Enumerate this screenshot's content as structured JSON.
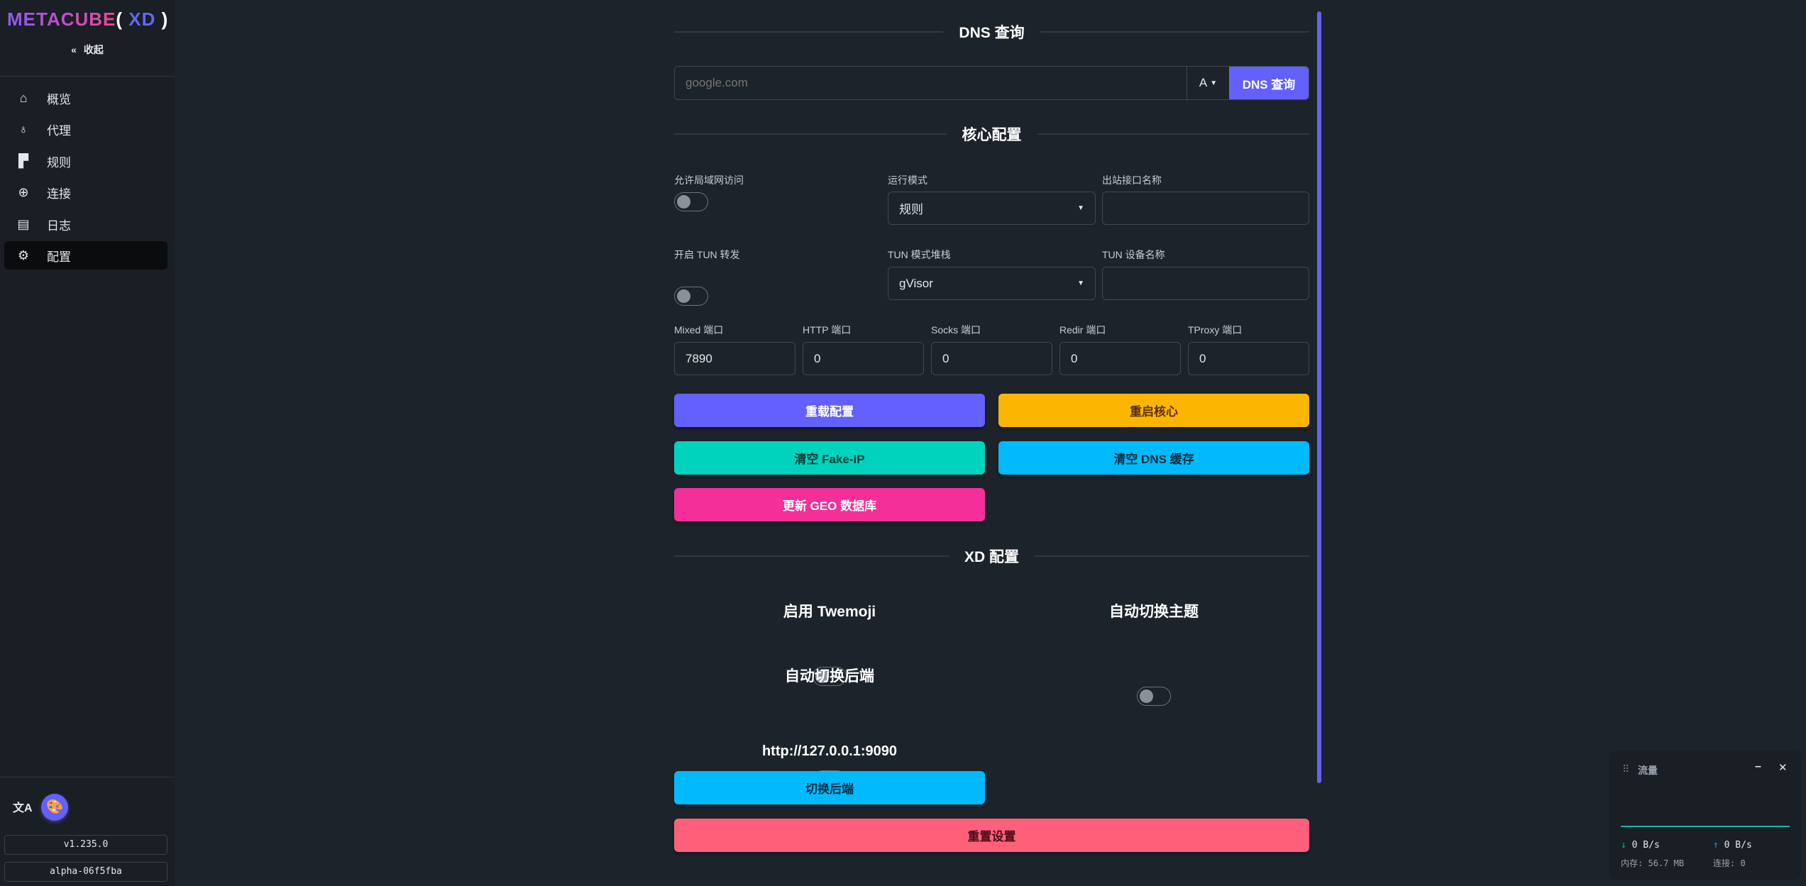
{
  "sidebar": {
    "logo_main": "METACUBE",
    "logo_open": "(",
    "logo_xd": " XD ",
    "logo_close": ")",
    "collapse_label": "收起",
    "items": [
      {
        "label": "概览",
        "icon": "home-icon"
      },
      {
        "label": "代理",
        "icon": "globe-stand-icon"
      },
      {
        "label": "规则",
        "icon": "ruler-icon"
      },
      {
        "label": "连接",
        "icon": "network-icon"
      },
      {
        "label": "日志",
        "icon": "document-icon"
      },
      {
        "label": "配置",
        "icon": "gear-icon",
        "active": true
      }
    ],
    "version": "v1.235.0",
    "build": "alpha-06f5fba"
  },
  "dns": {
    "title": "DNS 查询",
    "placeholder": "google.com",
    "type": "A",
    "button": "DNS 查询"
  },
  "core": {
    "title": "核心配置",
    "allow_lan": "允许局域网访问",
    "mode_label": "运行模式",
    "mode_value": "规则",
    "iface_label": "出站接口名称",
    "tun_label": "开启 TUN 转发",
    "stack_label": "TUN 模式堆栈",
    "stack_value": "gVisor",
    "tun_dev_label": "TUN 设备名称",
    "ports": [
      {
        "label": "Mixed 端口",
        "value": "7890"
      },
      {
        "label": "HTTP 端口",
        "value": "0"
      },
      {
        "label": "Socks 端口",
        "value": "0"
      },
      {
        "label": "Redir 端口",
        "value": "0"
      },
      {
        "label": "TProxy 端口",
        "value": "0"
      }
    ],
    "buttons": {
      "reload": "重载配置",
      "restart": "重启核心",
      "flush_fakeip": "清空 Fake-IP",
      "flush_dns": "清空 DNS 缓存",
      "update_geo": "更新 GEO 数据库"
    }
  },
  "xd": {
    "title": "XD 配置",
    "twemoji": "启用 Twemoji",
    "auto_theme": "自动切换主题",
    "auto_backend": "自动切换后端",
    "backend_url": "http://127.0.0.1:9090",
    "switch_backend": "切换后端",
    "reset": "重置设置"
  },
  "colors": {
    "primary": "#6360fd",
    "warning": "#fdb600",
    "accent": "#00d3bd",
    "info": "#00bafe",
    "secondary": "#f42f9a",
    "error": "#ff6079"
  },
  "traffic": {
    "title": "流量",
    "down": "0 B/s",
    "up": "0 B/s",
    "memory_label": "内存:",
    "memory": "56.7 MB",
    "conn_label": "连接:",
    "conn": "0"
  }
}
